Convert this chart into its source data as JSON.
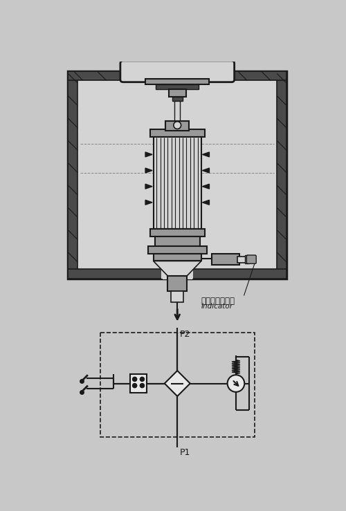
{
  "bg_color": "#c8c8c8",
  "lc": "#1a1a1a",
  "fl": "#d4d4d4",
  "fd": "#4a4a4a",
  "fm": "#999999",
  "fw": "#e8e8e8",
  "text_chinese": "发讯器安装示意",
  "text_english": "Indicator",
  "text_p1": "P1",
  "text_p2": "P2"
}
